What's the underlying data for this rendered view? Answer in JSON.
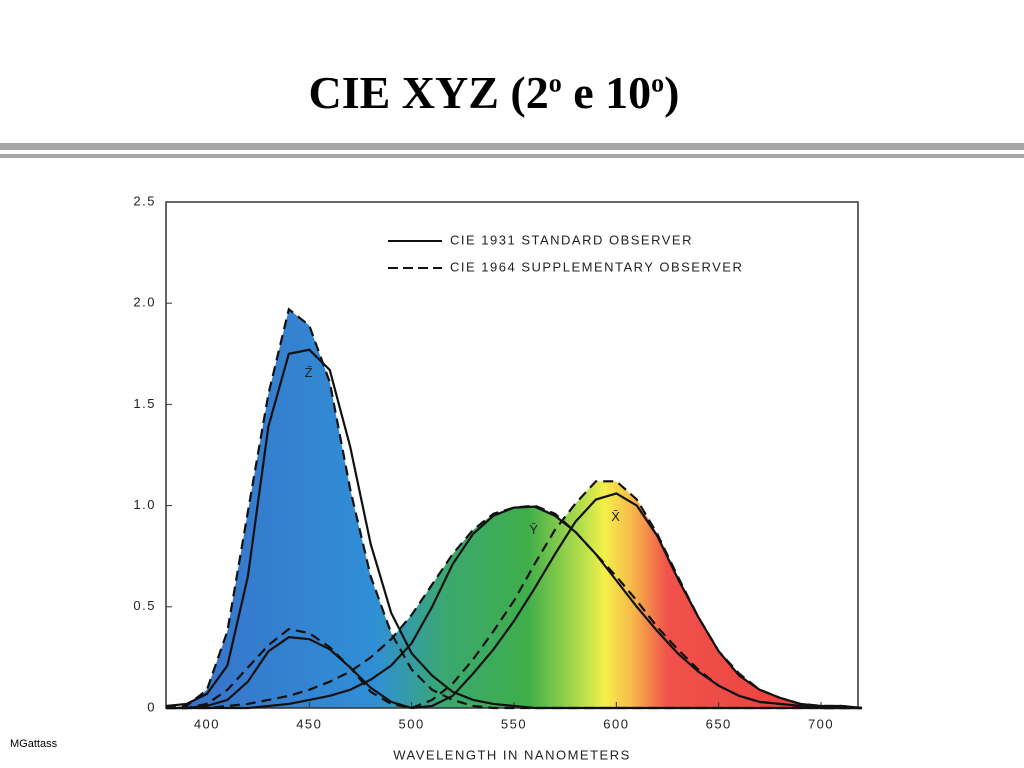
{
  "title": [
    "CIE XYZ (2",
    "o",
    " e 10",
    "o",
    ")"
  ],
  "footer": "MGattass",
  "chart_data": {
    "type": "line",
    "xlabel": "WAVELENGTH IN NANOMETERS",
    "x": [
      380,
      390,
      400,
      410,
      420,
      430,
      440,
      450,
      460,
      470,
      480,
      490,
      500,
      510,
      520,
      530,
      540,
      550,
      560,
      570,
      580,
      590,
      600,
      610,
      620,
      630,
      640,
      650,
      660,
      670,
      680,
      690,
      700,
      710,
      720
    ],
    "xlim": [
      380,
      720
    ],
    "xticks": [
      400,
      450,
      500,
      550,
      600,
      650,
      700
    ],
    "ylim": [
      0,
      2.5
    ],
    "yticks": [
      0,
      0.5,
      {
        "value": 1,
        "label": "1.0"
      },
      1.5,
      {
        "value": 2,
        "label": "2.0"
      },
      2.5
    ],
    "annotations": [
      "Z̄",
      "Ȳ",
      "X̄"
    ],
    "observers": [
      {
        "name": "CIE 1931 STANDARD OBSERVER",
        "dash": "solid",
        "color": "#111111",
        "curves": [
          {
            "values": [
              0.01,
              0.02,
              0.07,
              0.21,
              0.65,
              1.39,
              1.75,
              1.77,
              1.67,
              1.29,
              0.81,
              0.47,
              0.27,
              0.16,
              0.08,
              0.04,
              0.02,
              0.01,
              0,
              0,
              0,
              0,
              0,
              0,
              0,
              0,
              0,
              0,
              0,
              0,
              0,
              0,
              0,
              0,
              0
            ]
          },
          {
            "values": [
              0,
              0,
              0,
              0,
              0,
              0.01,
              0.02,
              0.04,
              0.06,
              0.09,
              0.14,
              0.21,
              0.32,
              0.5,
              0.71,
              0.86,
              0.95,
              0.99,
              0.995,
              0.95,
              0.87,
              0.76,
              0.63,
              0.5,
              0.38,
              0.27,
              0.18,
              0.11,
              0.06,
              0.03,
              0.02,
              0.01,
              0,
              0,
              0
            ]
          },
          {
            "values": [
              0,
              0,
              0.01,
              0.04,
              0.13,
              0.28,
              0.35,
              0.34,
              0.29,
              0.2,
              0.1,
              0.03,
              0,
              0.01,
              0.06,
              0.17,
              0.29,
              0.43,
              0.59,
              0.76,
              0.92,
              1.03,
              1.06,
              1,
              0.85,
              0.64,
              0.45,
              0.28,
              0.16,
              0.09,
              0.05,
              0.02,
              0.01,
              0.01,
              0
            ]
          }
        ]
      },
      {
        "name": "CIE 1964 SUPPLEMENTARY OBSERVER",
        "dash": "dashed",
        "color": "#111111",
        "curves": [
          {
            "values": [
              0,
              0.01,
              0.09,
              0.38,
              0.97,
              1.55,
              1.97,
              1.89,
              1.61,
              1.08,
              0.65,
              0.37,
              0.19,
              0.09,
              0.04,
              0.01,
              0,
              0,
              0,
              0,
              0,
              0,
              0,
              0,
              0,
              0,
              0,
              0,
              0,
              0,
              0,
              0,
              0,
              0,
              0
            ]
          },
          {
            "values": [
              0,
              0,
              0,
              0.01,
              0.02,
              0.04,
              0.06,
              0.09,
              0.13,
              0.18,
              0.25,
              0.34,
              0.46,
              0.61,
              0.76,
              0.88,
              0.96,
              0.99,
              1,
              0.96,
              0.87,
              0.76,
              0.65,
              0.53,
              0.4,
              0.29,
              0.19,
              0.11,
              0.06,
              0.03,
              0.02,
              0.01,
              0,
              0,
              0
            ]
          },
          {
            "values": [
              0,
              0,
              0.02,
              0.09,
              0.2,
              0.31,
              0.39,
              0.37,
              0.3,
              0.2,
              0.08,
              0.02,
              0,
              0.04,
              0.12,
              0.24,
              0.38,
              0.53,
              0.71,
              0.88,
              1.01,
              1.12,
              1.12,
              1.03,
              0.86,
              0.65,
              0.45,
              0.28,
              0.17,
              0.09,
              0.05,
              0.02,
              0.01,
              0.01,
              0
            ]
          }
        ]
      }
    ]
  }
}
